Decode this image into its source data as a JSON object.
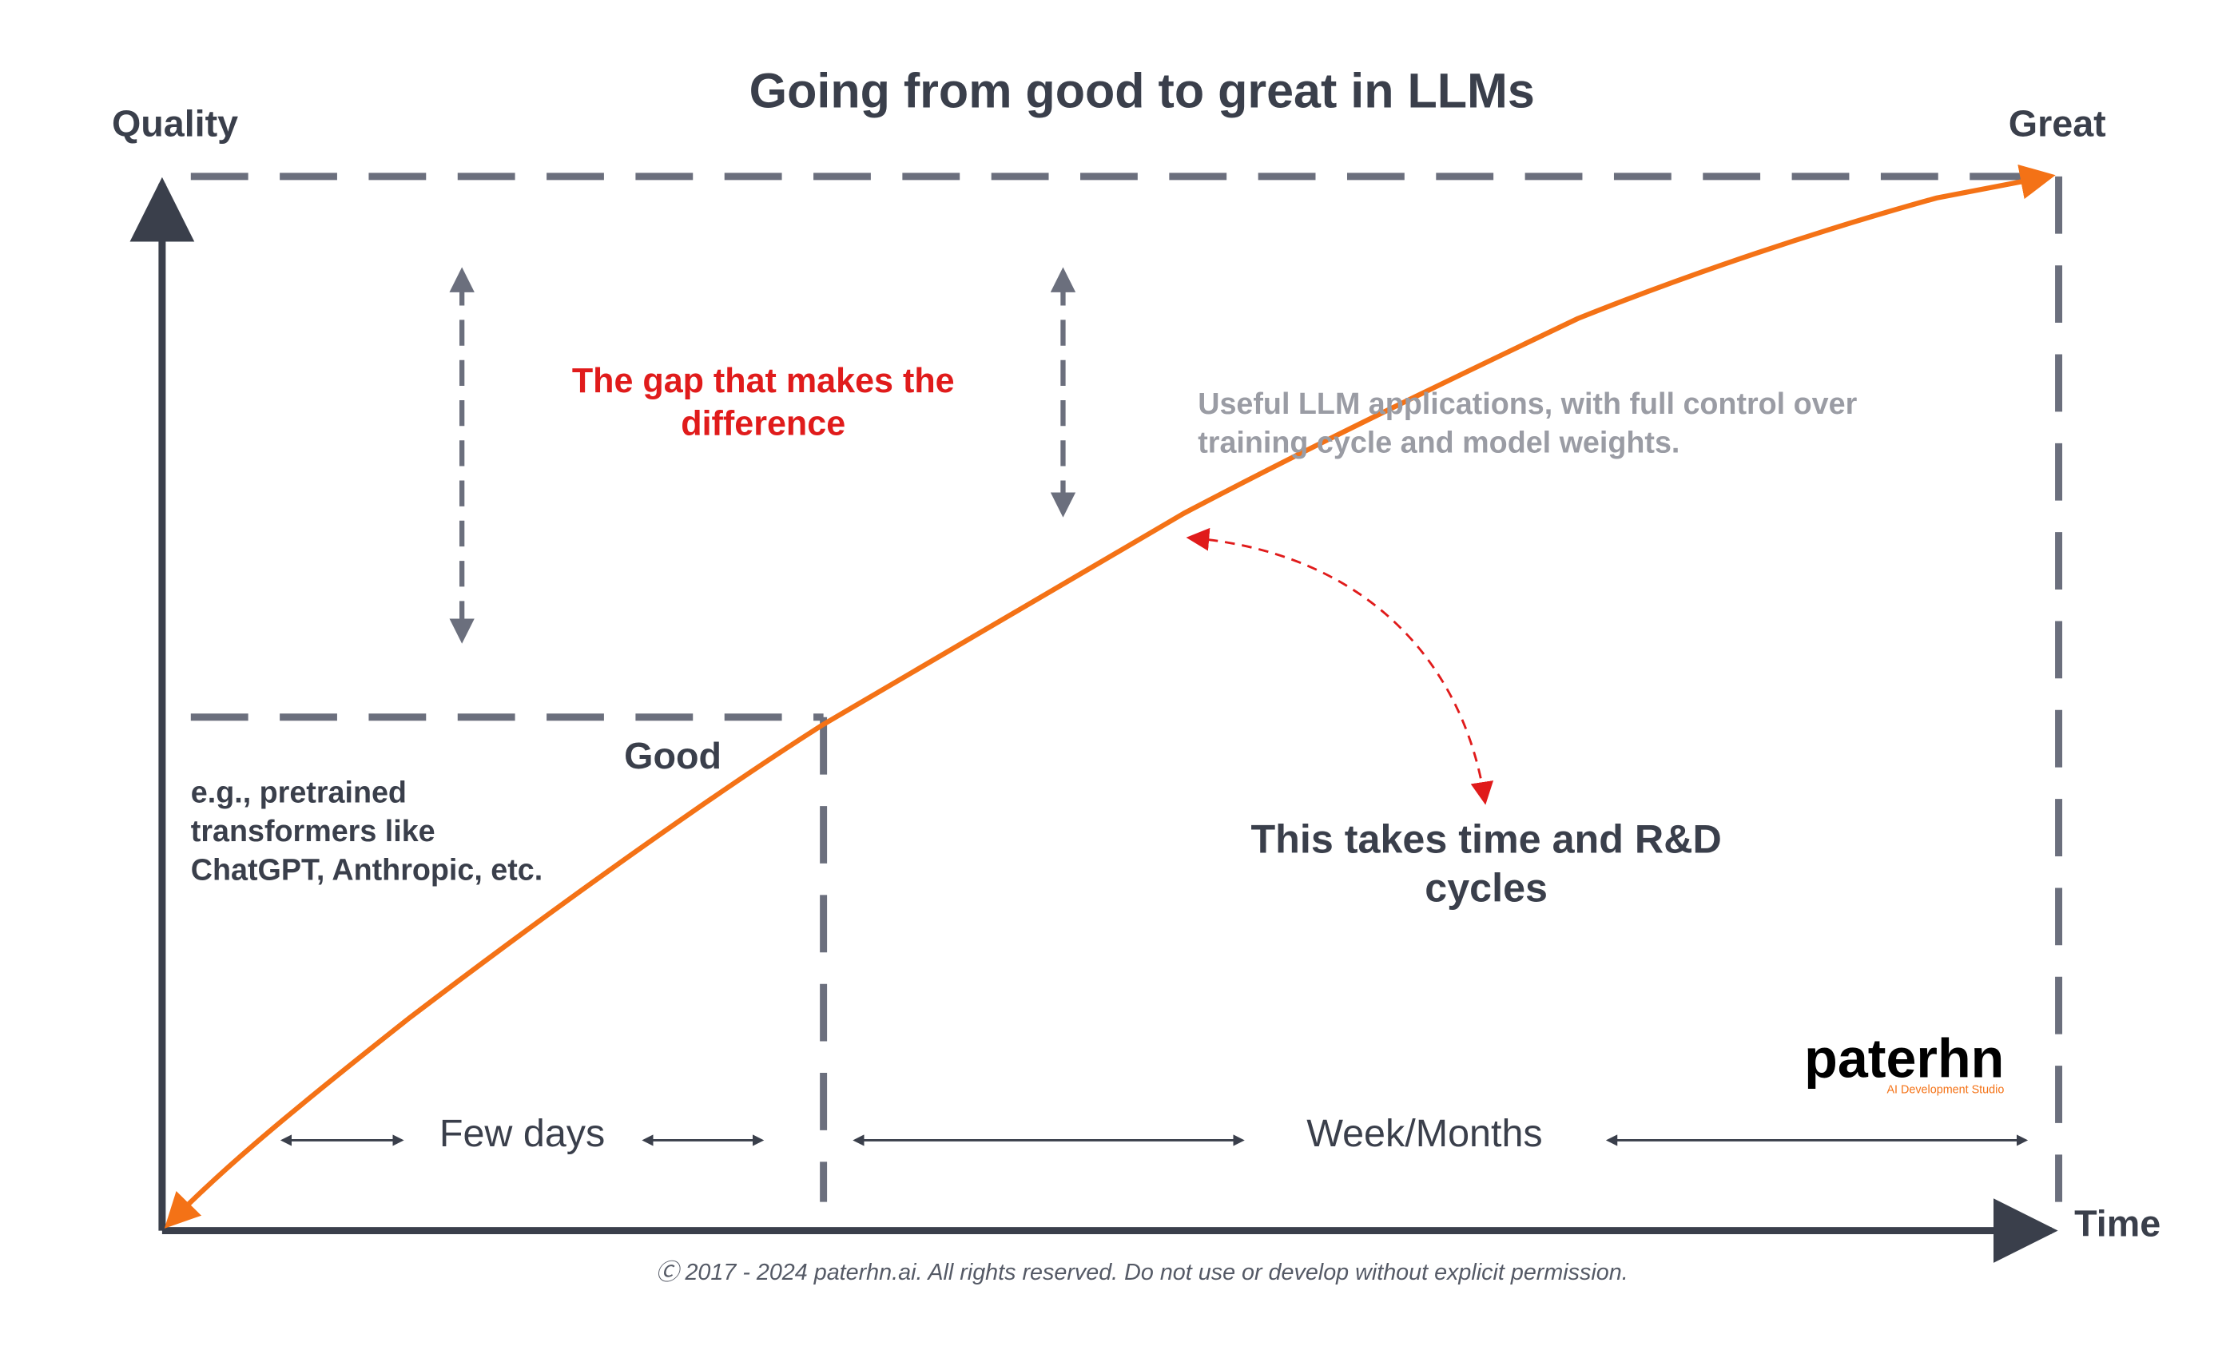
{
  "title": "Going from good to great in LLMs",
  "axes": {
    "y_label": "Quality",
    "x_label": "Time",
    "top_label": "Great",
    "good_label": "Good"
  },
  "annotations": {
    "gap": [
      "The gap that makes the",
      "difference"
    ],
    "useful": [
      "Useful LLM applications, with full control over",
      "training cycle and model weights."
    ],
    "rnd": [
      "This takes time and R&D",
      "cycles"
    ],
    "examples": [
      "e.g., pretrained",
      "transformers like",
      "ChatGPT, Anthropic, etc."
    ],
    "few_days": "Few days",
    "weeks_months": "Week/Months"
  },
  "logo": {
    "name": "paterhn",
    "tagline": "AI Development Studio"
  },
  "footer": "Ⓒ 2017 - 2024 paterhn.ai. All rights reserved. Do not use or develop without explicit permission."
}
